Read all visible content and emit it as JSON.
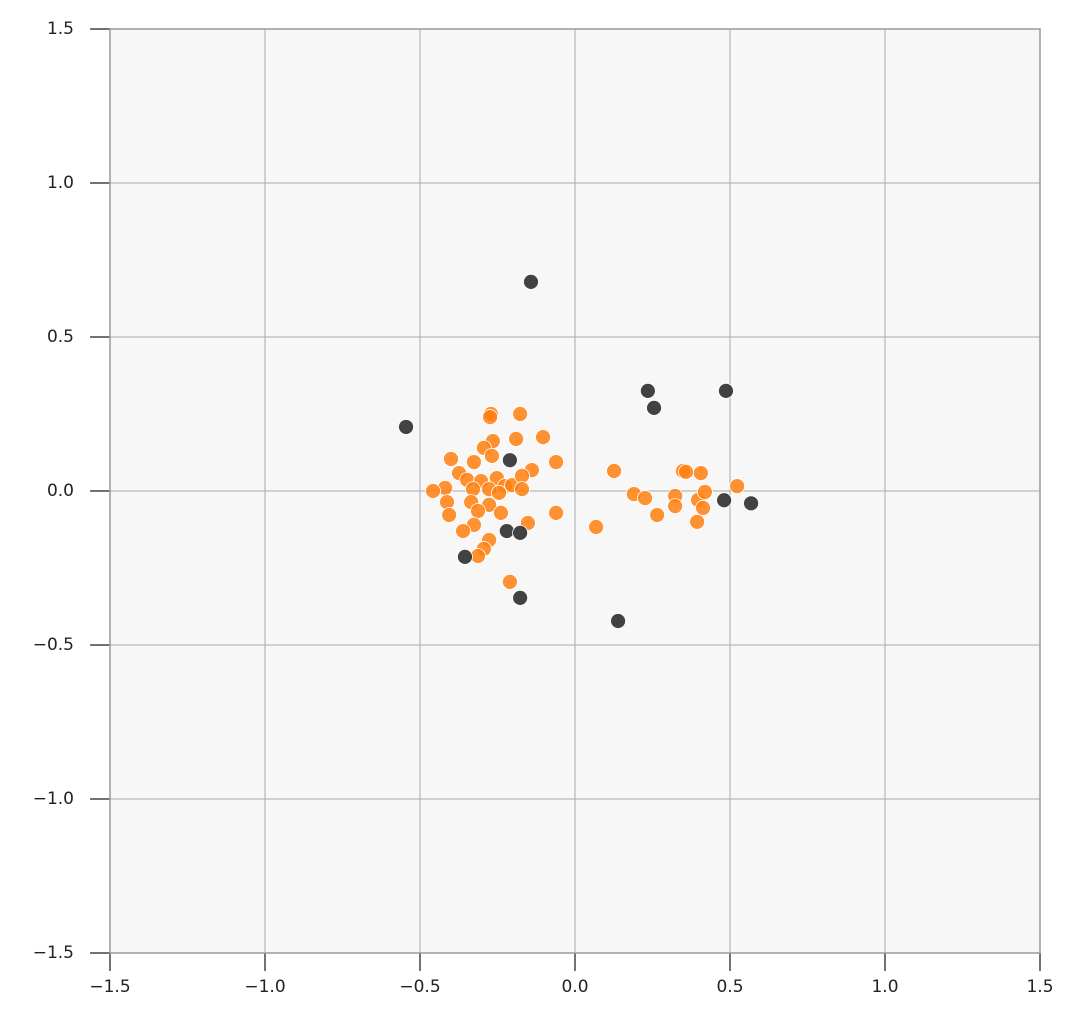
{
  "chart_data": {
    "type": "scatter",
    "xlim": [
      -1.5,
      1.5
    ],
    "ylim": [
      -1.5,
      1.5
    ],
    "xticks": [
      {
        "value": -1.5,
        "label": "−1.5"
      },
      {
        "value": -1.0,
        "label": "−1.0"
      },
      {
        "value": -0.5,
        "label": "−0.5"
      },
      {
        "value": 0,
        "label": "0.0"
      },
      0.5,
      {
        "value": 1.0,
        "label": "1.0"
      },
      1.5
    ],
    "yticks": [
      {
        "value": -1.5,
        "label": "−1.5"
      },
      {
        "value": -1.0,
        "label": "−1.0"
      },
      {
        "value": -0.5,
        "label": "−0.5"
      },
      {
        "value": 0,
        "label": "0.0"
      },
      0.5,
      {
        "value": 1.0,
        "label": "1.0"
      },
      1.5
    ],
    "grid": true,
    "series": [
      {
        "color": "#ff7f0e",
        "x": [
          -0.271,
          -0.274,
          -0.177,
          -0.103,
          -0.19,
          -0.265,
          -0.294,
          -0.061,
          -0.139,
          -0.4,
          -0.326,
          -0.268,
          -0.374,
          -0.348,
          -0.419,
          -0.458,
          -0.413,
          -0.406,
          -0.303,
          -0.252,
          -0.329,
          -0.277,
          -0.226,
          -0.203,
          -0.171,
          -0.171,
          -0.245,
          -0.335,
          -0.277,
          -0.313,
          -0.239,
          -0.326,
          -0.361,
          -0.152,
          -0.061,
          -0.277,
          -0.294,
          -0.313,
          -0.21,
          0.068,
          0.126,
          0.19,
          0.226,
          0.265,
          0.323,
          0.323,
          0.348,
          0.358,
          0.406,
          0.397,
          0.419,
          0.413,
          0.394,
          0.523
        ],
        "values": [
          0.25,
          0.24,
          0.25,
          0.175,
          0.169,
          0.162,
          0.14,
          0.094,
          0.068,
          0.104,
          0.094,
          0.114,
          0.058,
          0.036,
          0.01,
          0,
          -0.036,
          -0.078,
          0.032,
          0.042,
          0.006,
          0.006,
          0.016,
          0.019,
          0.049,
          0.006,
          -0.006,
          -0.036,
          -0.045,
          -0.065,
          -0.071,
          -0.11,
          -0.13,
          -0.104,
          -0.071,
          -0.159,
          -0.188,
          -0.211,
          -0.295,
          -0.117,
          0.065,
          -0.01,
          -0.023,
          -0.078,
          -0.016,
          -0.049,
          0.065,
          0.062,
          0.058,
          -0.029,
          -0.003,
          -0.055,
          -0.1,
          0.016
        ]
      },
      {
        "color": "#222222",
        "x": [
          -0.142,
          -0.545,
          0.235,
          0.255,
          0.487,
          -0.21,
          0.481,
          0.568,
          -0.22,
          -0.177,
          -0.355,
          -0.177,
          0.139
        ],
        "values": [
          0.679,
          0.208,
          0.325,
          0.27,
          0.325,
          0.1,
          -0.03,
          -0.04,
          -0.13,
          -0.136,
          -0.214,
          -0.347,
          -0.422
        ]
      }
    ]
  }
}
